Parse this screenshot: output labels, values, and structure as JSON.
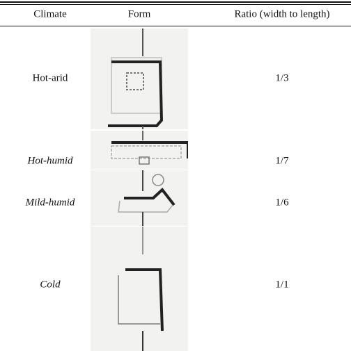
{
  "table": {
    "columns": [
      "Climate",
      "Form",
      "Ratio (width to length)"
    ],
    "rows": [
      [
        "Hot-arid",
        "1/3"
      ],
      [
        "Hot-humid",
        "1/7"
      ],
      [
        "Mild-humid",
        "1/6"
      ],
      [
        "Cold",
        "1/1"
      ]
    ]
  }
}
